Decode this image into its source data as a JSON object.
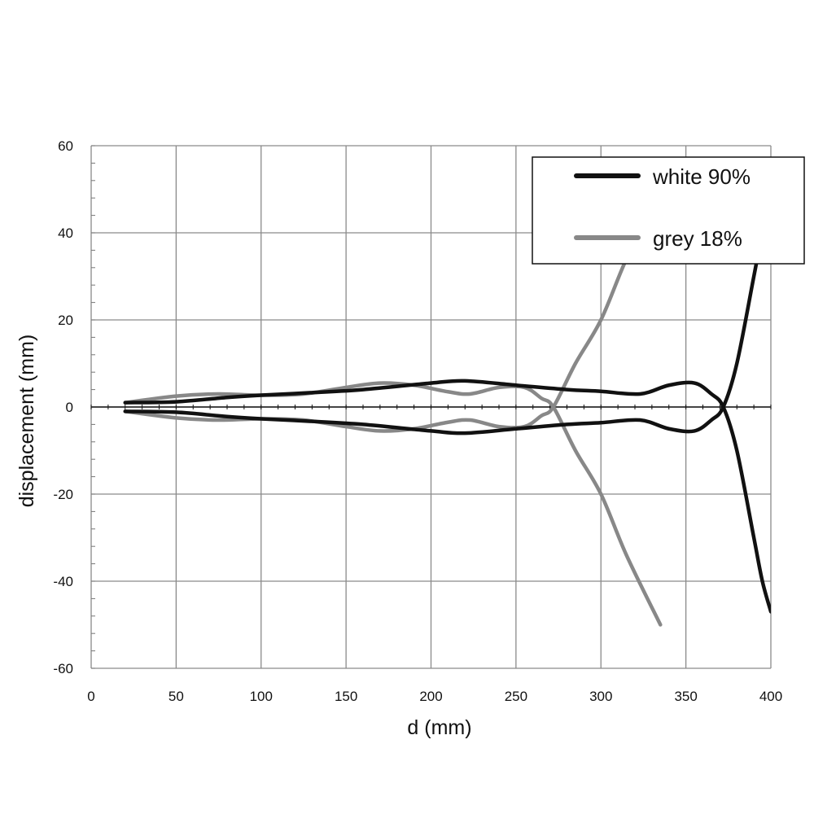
{
  "chart_data": {
    "type": "line",
    "title": "",
    "xlabel": "d (mm)",
    "ylabel": "displacement (mm)",
    "xlim": [
      0,
      400
    ],
    "ylim": [
      -60,
      60
    ],
    "x_ticks": [
      0,
      50,
      100,
      150,
      200,
      250,
      300,
      350,
      400
    ],
    "y_ticks": [
      -60,
      -40,
      -20,
      0,
      20,
      40,
      60
    ],
    "grid": true,
    "legend_position": "top-right",
    "series": [
      {
        "name": "white 90%",
        "color": "#111111",
        "x": [
          20,
          50,
          80,
          100,
          130,
          160,
          200,
          220,
          250,
          280,
          300,
          323,
          340,
          355,
          365,
          372,
          380,
          390,
          395,
          400
        ],
        "y": [
          1,
          1.2,
          2.2,
          2.7,
          3.3,
          4,
          5.5,
          6,
          5,
          4,
          3.6,
          3,
          5,
          5.5,
          3,
          0,
          -10,
          -30,
          -40,
          -47
        ],
        "mirror": true
      },
      {
        "name": "grey 18%",
        "color": "#888888",
        "x": [
          20,
          50,
          75,
          100,
          125,
          150,
          170,
          190,
          210,
          223,
          240,
          255,
          265,
          272,
          285,
          300,
          315,
          335
        ],
        "y": [
          1,
          2.5,
          3,
          2.7,
          3,
          4.5,
          5.5,
          5,
          3.5,
          3,
          4.5,
          4.5,
          2,
          0,
          -10,
          -20,
          -34,
          -50
        ],
        "mirror": true
      }
    ]
  }
}
